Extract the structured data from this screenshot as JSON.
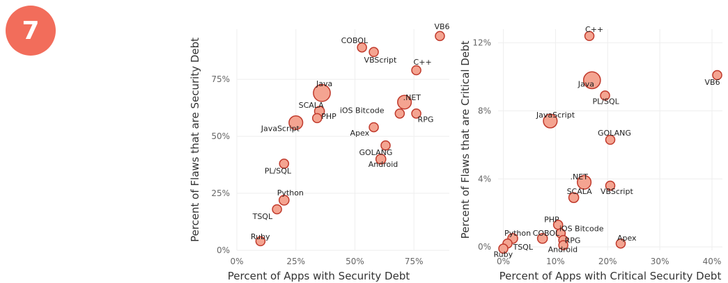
{
  "badge": {
    "text": "7"
  },
  "chart_data": [
    {
      "type": "scatter",
      "xlabel": "Percent of Apps with Security Debt",
      "ylabel": "Percent of Flaws that are Security Debt",
      "xlim": [
        0,
        0.9
      ],
      "ylim": [
        0,
        0.97
      ],
      "xticks": [
        0,
        0.25,
        0.5,
        0.75
      ],
      "xtick_labels": [
        "0%",
        "25%",
        "50%",
        "75%"
      ],
      "yticks": [
        0,
        0.25,
        0.5,
        0.75
      ],
      "ytick_labels": [
        "0%",
        "25%",
        "50%",
        "75%"
      ],
      "grid": true,
      "marker_color": "#f4a491",
      "marker_edge_color": "#c0392b",
      "points": [
        {
          "label": "VB6",
          "x": 0.86,
          "y": 0.94,
          "size": 2
        },
        {
          "label": "COBOL",
          "x": 0.53,
          "y": 0.89,
          "size": 2
        },
        {
          "label": "VBScript",
          "x": 0.58,
          "y": 0.87,
          "size": 2
        },
        {
          "label": "C++",
          "x": 0.76,
          "y": 0.79,
          "size": 2
        },
        {
          "label": "Java",
          "x": 0.36,
          "y": 0.69,
          "size": 10
        },
        {
          "label": ".NET",
          "x": 0.71,
          "y": 0.65,
          "size": 6
        },
        {
          "label": "SCALA",
          "x": 0.35,
          "y": 0.61,
          "size": 2.5
        },
        {
          "label": "iOS Bitcode",
          "x": 0.69,
          "y": 0.6,
          "size": 2
        },
        {
          "label": "RPG",
          "x": 0.76,
          "y": 0.6,
          "size": 2
        },
        {
          "label": "PHP",
          "x": 0.34,
          "y": 0.58,
          "size": 2
        },
        {
          "label": "JavaScript",
          "x": 0.25,
          "y": 0.56,
          "size": 6
        },
        {
          "label": "Apex",
          "x": 0.58,
          "y": 0.54,
          "size": 2
        },
        {
          "label": "GOLANG",
          "x": 0.63,
          "y": 0.46,
          "size": 2
        },
        {
          "label": "Android",
          "x": 0.61,
          "y": 0.4,
          "size": 2.5
        },
        {
          "label": "PL/SQL",
          "x": 0.2,
          "y": 0.38,
          "size": 2
        },
        {
          "label": "Python",
          "x": 0.2,
          "y": 0.22,
          "size": 2.5
        },
        {
          "label": "TSQL",
          "x": 0.17,
          "y": 0.18,
          "size": 2
        },
        {
          "label": "Ruby",
          "x": 0.1,
          "y": 0.04,
          "size": 2
        }
      ]
    },
    {
      "type": "scatter",
      "xlabel": "Percent of Apps with Critical Security Debt",
      "ylabel": "Percent of Flaws that are Critical Debt",
      "xlim": [
        -0.01,
        0.42
      ],
      "ylim": [
        -0.002,
        0.128
      ],
      "xticks": [
        0,
        0.1,
        0.2,
        0.3,
        0.4
      ],
      "xtick_labels": [
        "0%",
        "10%",
        "20%",
        "30%",
        "40%"
      ],
      "yticks": [
        0,
        0.04,
        0.08,
        0.12
      ],
      "ytick_labels": [
        "0%",
        "4%",
        "8%",
        "12%"
      ],
      "grid": true,
      "marker_color": "#f4a491",
      "marker_edge_color": "#c0392b",
      "points": [
        {
          "label": "C++",
          "x": 0.165,
          "y": 0.124,
          "size": 2
        },
        {
          "label": "VB6",
          "x": 0.41,
          "y": 0.101,
          "size": 2
        },
        {
          "label": "Java",
          "x": 0.17,
          "y": 0.098,
          "size": 10
        },
        {
          "label": "PL/SQL",
          "x": 0.195,
          "y": 0.089,
          "size": 2
        },
        {
          "label": "JavaScript",
          "x": 0.09,
          "y": 0.074,
          "size": 6
        },
        {
          "label": "GOLANG",
          "x": 0.205,
          "y": 0.063,
          "size": 2
        },
        {
          "label": ".NET",
          "x": 0.155,
          "y": 0.038,
          "size": 6
        },
        {
          "label": "VBScript",
          "x": 0.205,
          "y": 0.036,
          "size": 2
        },
        {
          "label": "SCALA",
          "x": 0.135,
          "y": 0.029,
          "size": 2.5
        },
        {
          "label": "PHP",
          "x": 0.105,
          "y": 0.013,
          "size": 2
        },
        {
          "label": "iOS Bitcode",
          "x": 0.11,
          "y": 0.008,
          "size": 2
        },
        {
          "label": "Python",
          "x": 0.018,
          "y": 0.005,
          "size": 2.5
        },
        {
          "label": "COBOL",
          "x": 0.075,
          "y": 0.005,
          "size": 2.5
        },
        {
          "label": "RPG",
          "x": 0.115,
          "y": 0.004,
          "size": 2
        },
        {
          "label": "TSQL",
          "x": 0.008,
          "y": 0.002,
          "size": 2
        },
        {
          "label": "Apex",
          "x": 0.225,
          "y": 0.002,
          "size": 2
        },
        {
          "label": "Android",
          "x": 0.115,
          "y": 0.001,
          "size": 2
        },
        {
          "label": "Ruby",
          "x": 0.0,
          "y": -0.001,
          "size": 2
        }
      ]
    }
  ]
}
